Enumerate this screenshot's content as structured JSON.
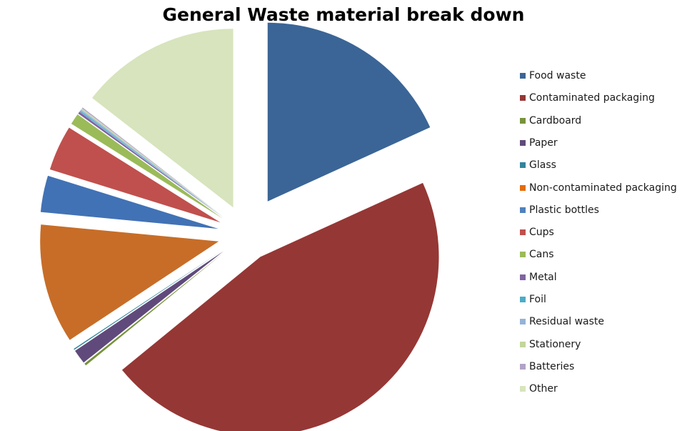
{
  "chart_data": {
    "type": "pie",
    "title": "General Waste material break down",
    "legend_position": "right",
    "exploded": true,
    "categories": [
      "Food waste",
      "Contaminated packaging",
      "Cardboard",
      "Paper",
      "Glass",
      "Non-contaminated packaging",
      "Plastic bottles",
      "Cups",
      "Cans",
      "Metal",
      "Foil",
      "Residual waste",
      "Stationery",
      "Batteries",
      "Other"
    ],
    "values": [
      18.2,
      45.9,
      0.2,
      1.3,
      0.1,
      10.8,
      3.3,
      4.1,
      1.0,
      0.2,
      0.1,
      0.1,
      0.1,
      0.1,
      14.5
    ],
    "colors": [
      "#3B6596",
      "#953735",
      "#77933C",
      "#604A7B",
      "#31859C",
      "#E46C0A",
      "#4F81BD",
      "#C0504D",
      "#9BBB59",
      "#8064A2",
      "#4BACC6",
      "#95B3D7",
      "#C3D69B",
      "#B3A2C7",
      "#D7E4BD"
    ],
    "pie_colors_override": {
      "5": "#C76D28",
      "6": "#4172B5",
      "7": "#C0504D"
    }
  }
}
